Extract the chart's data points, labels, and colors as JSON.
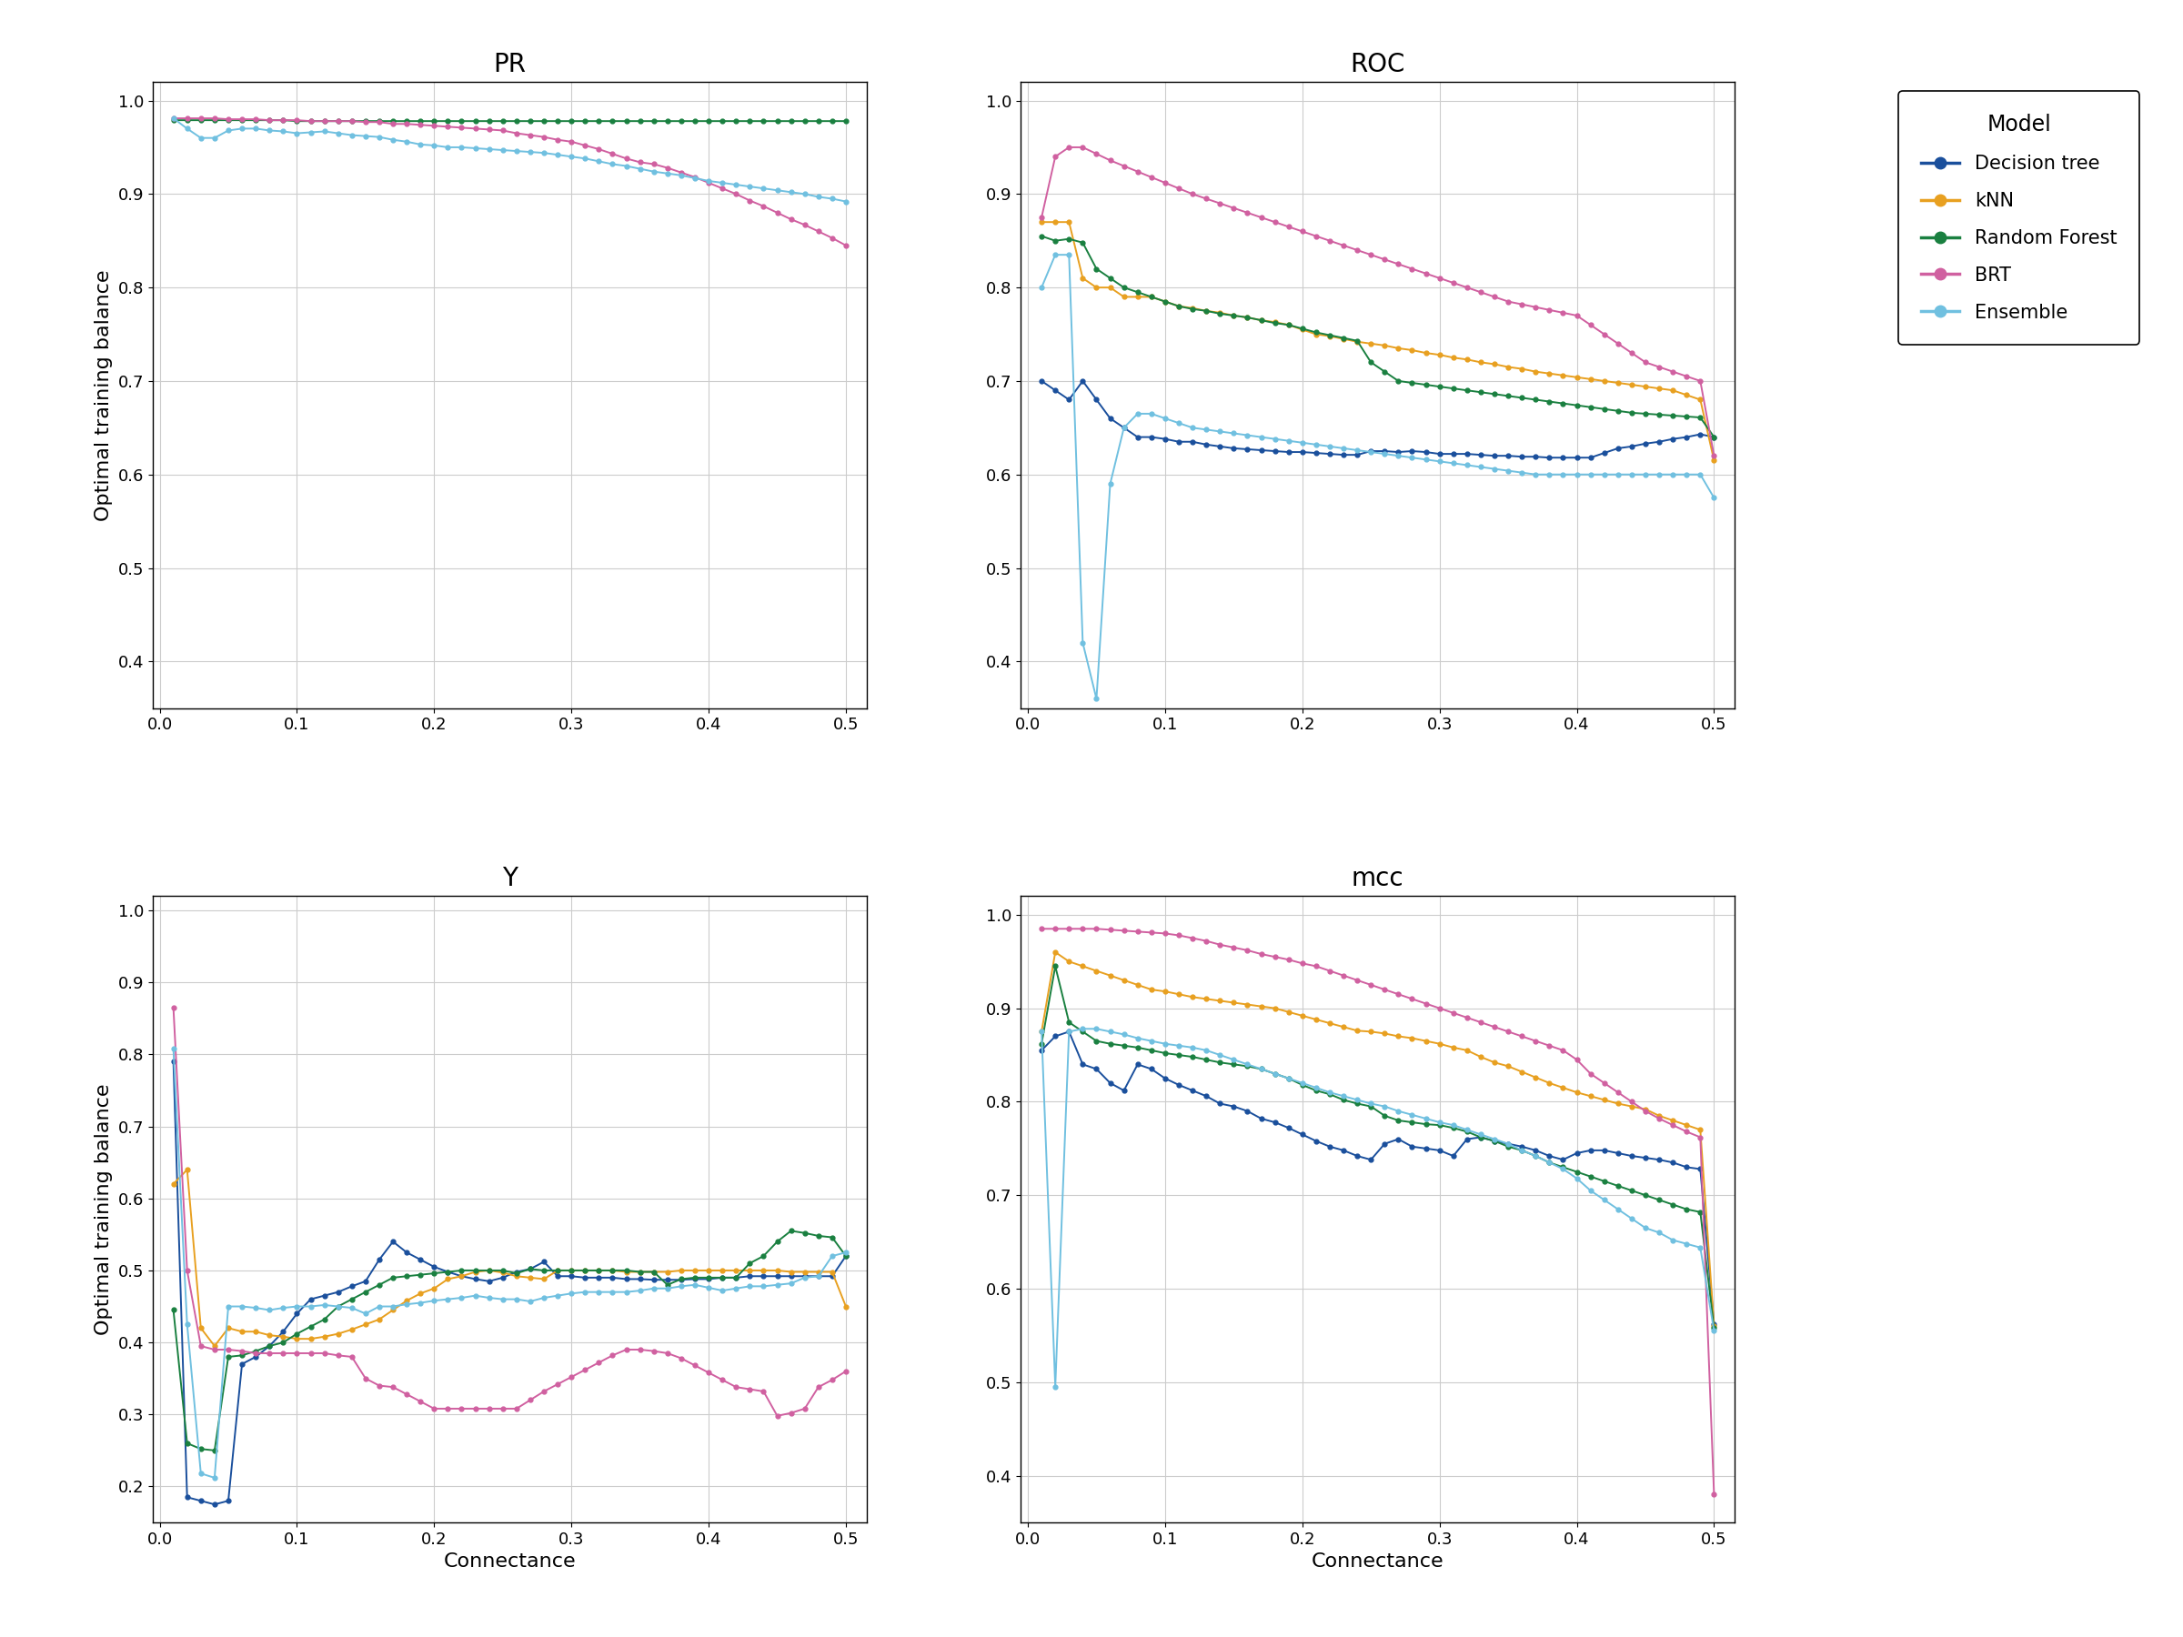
{
  "models": [
    "Decision tree",
    "kNN",
    "Random Forest",
    "BRT",
    "Ensemble"
  ],
  "colors": {
    "Decision tree": "#1a4f9c",
    "kNN": "#e8a020",
    "Random Forest": "#1a8040",
    "BRT": "#d060a0",
    "Ensemble": "#70c0e0"
  },
  "connectance": [
    0.01,
    0.02,
    0.03,
    0.04,
    0.05,
    0.06,
    0.07,
    0.08,
    0.09,
    0.1,
    0.11,
    0.12,
    0.13,
    0.14,
    0.15,
    0.16,
    0.17,
    0.18,
    0.19,
    0.2,
    0.21,
    0.22,
    0.23,
    0.24,
    0.25,
    0.26,
    0.27,
    0.28,
    0.29,
    0.3,
    0.31,
    0.32,
    0.33,
    0.34,
    0.35,
    0.36,
    0.37,
    0.38,
    0.39,
    0.4,
    0.41,
    0.42,
    0.43,
    0.44,
    0.45,
    0.46,
    0.47,
    0.48,
    0.49,
    0.5
  ],
  "PR": {
    "Decision tree": [
      null,
      null,
      null,
      null,
      null,
      null,
      null,
      null,
      null,
      null,
      null,
      null,
      null,
      null,
      null,
      null,
      null,
      null,
      null,
      null,
      null,
      null,
      null,
      null,
      null,
      null,
      null,
      null,
      null,
      null,
      null,
      null,
      null,
      null,
      null,
      null,
      null,
      null,
      null,
      null,
      null,
      null,
      null,
      null,
      null,
      null,
      null,
      null,
      null,
      null
    ],
    "kNN": [
      null,
      null,
      null,
      null,
      null,
      null,
      null,
      null,
      null,
      null,
      null,
      null,
      null,
      null,
      null,
      null,
      null,
      null,
      null,
      null,
      null,
      null,
      null,
      null,
      null,
      null,
      null,
      null,
      null,
      null,
      null,
      null,
      null,
      null,
      null,
      null,
      null,
      null,
      null,
      null,
      null,
      null,
      null,
      null,
      null,
      null,
      null,
      null,
      null,
      null
    ],
    "Random Forest": [
      0.979,
      0.979,
      0.979,
      0.979,
      0.979,
      0.979,
      0.979,
      0.979,
      0.979,
      0.978,
      0.978,
      0.978,
      0.978,
      0.978,
      0.978,
      0.978,
      0.978,
      0.978,
      0.978,
      0.978,
      0.978,
      0.978,
      0.978,
      0.978,
      0.978,
      0.978,
      0.978,
      0.978,
      0.978,
      0.978,
      0.978,
      0.978,
      0.978,
      0.978,
      0.978,
      0.978,
      0.978,
      0.978,
      0.978,
      0.978,
      0.978,
      0.978,
      0.978,
      0.978,
      0.978,
      0.978,
      0.978,
      0.978,
      0.978,
      0.978
    ],
    "BRT": [
      0.981,
      0.981,
      0.981,
      0.981,
      0.98,
      0.98,
      0.98,
      0.979,
      0.979,
      0.979,
      0.978,
      0.978,
      0.978,
      0.978,
      0.977,
      0.977,
      0.975,
      0.975,
      0.974,
      0.973,
      0.972,
      0.971,
      0.97,
      0.969,
      0.968,
      0.965,
      0.963,
      0.961,
      0.958,
      0.956,
      0.952,
      0.948,
      0.943,
      0.938,
      0.934,
      0.932,
      0.928,
      0.923,
      0.918,
      0.912,
      0.906,
      0.9,
      0.893,
      0.887,
      0.88,
      0.873,
      0.867,
      0.86,
      0.853,
      0.845
    ],
    "Ensemble": [
      0.981,
      0.97,
      0.96,
      0.96,
      0.968,
      0.97,
      0.97,
      0.968,
      0.967,
      0.965,
      0.966,
      0.967,
      0.965,
      0.963,
      0.962,
      0.961,
      0.958,
      0.956,
      0.953,
      0.952,
      0.95,
      0.95,
      0.949,
      0.948,
      0.947,
      0.946,
      0.945,
      0.944,
      0.942,
      0.94,
      0.938,
      0.935,
      0.932,
      0.93,
      0.927,
      0.924,
      0.922,
      0.92,
      0.917,
      0.914,
      0.912,
      0.91,
      0.908,
      0.906,
      0.904,
      0.902,
      0.9,
      0.897,
      0.895,
      0.892
    ]
  },
  "ROC": {
    "Decision tree": [
      0.7,
      0.69,
      0.68,
      0.7,
      0.68,
      0.66,
      0.65,
      0.64,
      0.64,
      0.638,
      0.635,
      0.635,
      0.632,
      0.63,
      0.628,
      0.627,
      0.626,
      0.625,
      0.624,
      0.624,
      0.623,
      0.622,
      0.621,
      0.621,
      0.625,
      0.625,
      0.624,
      0.625,
      0.624,
      0.622,
      0.622,
      0.622,
      0.621,
      0.62,
      0.62,
      0.619,
      0.619,
      0.618,
      0.618,
      0.618,
      0.618,
      0.623,
      0.628,
      0.63,
      0.633,
      0.635,
      0.638,
      0.64,
      0.643,
      0.64
    ],
    "kNN": [
      0.87,
      0.87,
      0.87,
      0.81,
      0.8,
      0.8,
      0.79,
      0.79,
      0.79,
      0.785,
      0.78,
      0.778,
      0.775,
      0.773,
      0.77,
      0.768,
      0.765,
      0.763,
      0.76,
      0.755,
      0.75,
      0.748,
      0.745,
      0.742,
      0.74,
      0.738,
      0.735,
      0.733,
      0.73,
      0.728,
      0.725,
      0.723,
      0.72,
      0.718,
      0.715,
      0.713,
      0.71,
      0.708,
      0.706,
      0.704,
      0.702,
      0.7,
      0.698,
      0.696,
      0.694,
      0.692,
      0.69,
      0.685,
      0.68,
      0.615
    ],
    "Random Forest": [
      0.855,
      0.85,
      0.852,
      0.848,
      0.82,
      0.81,
      0.8,
      0.795,
      0.79,
      0.785,
      0.78,
      0.777,
      0.775,
      0.772,
      0.77,
      0.768,
      0.765,
      0.762,
      0.76,
      0.756,
      0.752,
      0.749,
      0.746,
      0.743,
      0.72,
      0.71,
      0.7,
      0.698,
      0.696,
      0.694,
      0.692,
      0.69,
      0.688,
      0.686,
      0.684,
      0.682,
      0.68,
      0.678,
      0.676,
      0.674,
      0.672,
      0.67,
      0.668,
      0.666,
      0.665,
      0.664,
      0.663,
      0.662,
      0.661,
      0.64
    ],
    "BRT": [
      0.875,
      0.94,
      0.95,
      0.95,
      0.943,
      0.936,
      0.93,
      0.924,
      0.918,
      0.912,
      0.906,
      0.9,
      0.895,
      0.89,
      0.885,
      0.88,
      0.875,
      0.87,
      0.865,
      0.86,
      0.855,
      0.85,
      0.845,
      0.84,
      0.835,
      0.83,
      0.825,
      0.82,
      0.815,
      0.81,
      0.805,
      0.8,
      0.795,
      0.79,
      0.785,
      0.782,
      0.779,
      0.776,
      0.773,
      0.77,
      0.76,
      0.75,
      0.74,
      0.73,
      0.72,
      0.715,
      0.71,
      0.705,
      0.7,
      0.62
    ],
    "Ensemble": [
      0.8,
      0.835,
      0.835,
      0.42,
      0.36,
      0.59,
      0.65,
      0.665,
      0.665,
      0.66,
      0.655,
      0.65,
      0.648,
      0.646,
      0.644,
      0.642,
      0.64,
      0.638,
      0.636,
      0.634,
      0.632,
      0.63,
      0.628,
      0.626,
      0.624,
      0.622,
      0.62,
      0.618,
      0.616,
      0.614,
      0.612,
      0.61,
      0.608,
      0.606,
      0.604,
      0.602,
      0.6,
      0.6,
      0.6,
      0.6,
      0.6,
      0.6,
      0.6,
      0.6,
      0.6,
      0.6,
      0.6,
      0.6,
      0.6,
      0.575
    ]
  },
  "Y": {
    "Decision tree": [
      0.79,
      0.185,
      0.18,
      0.175,
      0.18,
      0.37,
      0.38,
      0.395,
      0.415,
      0.44,
      0.46,
      0.465,
      0.47,
      0.478,
      0.485,
      0.515,
      0.54,
      0.525,
      0.515,
      0.505,
      0.498,
      0.492,
      0.488,
      0.485,
      0.49,
      0.498,
      0.502,
      0.512,
      0.492,
      0.492,
      0.49,
      0.49,
      0.49,
      0.488,
      0.488,
      0.487,
      0.487,
      0.487,
      0.488,
      0.488,
      0.49,
      0.49,
      0.492,
      0.492,
      0.492,
      0.492,
      0.492,
      0.492,
      0.492,
      0.52
    ],
    "kNN": [
      0.62,
      0.64,
      0.42,
      0.395,
      0.42,
      0.415,
      0.415,
      0.41,
      0.408,
      0.405,
      0.405,
      0.408,
      0.412,
      0.418,
      0.425,
      0.432,
      0.445,
      0.458,
      0.468,
      0.475,
      0.488,
      0.492,
      0.498,
      0.5,
      0.497,
      0.492,
      0.49,
      0.488,
      0.5,
      0.5,
      0.5,
      0.5,
      0.5,
      0.498,
      0.498,
      0.498,
      0.498,
      0.5,
      0.5,
      0.5,
      0.5,
      0.5,
      0.5,
      0.5,
      0.5,
      0.498,
      0.498,
      0.498,
      0.498,
      0.45
    ],
    "Random Forest": [
      0.445,
      0.26,
      0.252,
      0.25,
      0.38,
      0.382,
      0.388,
      0.395,
      0.4,
      0.412,
      0.422,
      0.432,
      0.45,
      0.46,
      0.47,
      0.48,
      0.49,
      0.492,
      0.494,
      0.496,
      0.498,
      0.5,
      0.5,
      0.5,
      0.5,
      0.496,
      0.502,
      0.5,
      0.5,
      0.5,
      0.5,
      0.5,
      0.5,
      0.5,
      0.498,
      0.498,
      0.48,
      0.488,
      0.49,
      0.49,
      0.49,
      0.49,
      0.51,
      0.52,
      0.54,
      0.555,
      0.552,
      0.548,
      0.546,
      0.52
    ],
    "BRT": [
      0.865,
      0.5,
      0.395,
      0.39,
      0.39,
      0.388,
      0.385,
      0.385,
      0.385,
      0.385,
      0.385,
      0.385,
      0.382,
      0.38,
      0.35,
      0.34,
      0.338,
      0.328,
      0.318,
      0.308,
      0.308,
      0.308,
      0.308,
      0.308,
      0.308,
      0.308,
      0.32,
      0.332,
      0.342,
      0.352,
      0.362,
      0.372,
      0.382,
      0.39,
      0.39,
      0.388,
      0.385,
      0.378,
      0.368,
      0.358,
      0.348,
      0.338,
      0.335,
      0.332,
      0.298,
      0.302,
      0.308,
      0.338,
      0.348,
      0.36
    ],
    "Ensemble": [
      0.808,
      0.425,
      0.218,
      0.212,
      0.45,
      0.45,
      0.448,
      0.445,
      0.448,
      0.45,
      0.45,
      0.452,
      0.45,
      0.448,
      0.44,
      0.45,
      0.45,
      0.453,
      0.455,
      0.458,
      0.46,
      0.462,
      0.465,
      0.462,
      0.46,
      0.46,
      0.457,
      0.462,
      0.465,
      0.468,
      0.47,
      0.47,
      0.47,
      0.47,
      0.472,
      0.475,
      0.475,
      0.478,
      0.48,
      0.476,
      0.472,
      0.475,
      0.478,
      0.478,
      0.48,
      0.482,
      0.49,
      0.492,
      0.52,
      0.525
    ]
  },
  "mcc": {
    "Decision tree": [
      0.855,
      0.87,
      0.875,
      0.84,
      0.835,
      0.82,
      0.812,
      0.84,
      0.835,
      0.825,
      0.818,
      0.812,
      0.806,
      0.798,
      0.795,
      0.79,
      0.782,
      0.778,
      0.772,
      0.765,
      0.758,
      0.752,
      0.748,
      0.742,
      0.738,
      0.755,
      0.76,
      0.752,
      0.75,
      0.748,
      0.742,
      0.76,
      0.762,
      0.758,
      0.755,
      0.752,
      0.748,
      0.742,
      0.738,
      0.745,
      0.748,
      0.748,
      0.745,
      0.742,
      0.74,
      0.738,
      0.735,
      0.73,
      0.728,
      0.562
    ],
    "kNN": [
      0.875,
      0.96,
      0.95,
      0.945,
      0.94,
      0.935,
      0.93,
      0.925,
      0.92,
      0.918,
      0.915,
      0.912,
      0.91,
      0.908,
      0.906,
      0.904,
      0.902,
      0.9,
      0.896,
      0.892,
      0.888,
      0.884,
      0.88,
      0.876,
      0.875,
      0.873,
      0.87,
      0.868,
      0.865,
      0.862,
      0.858,
      0.855,
      0.848,
      0.842,
      0.838,
      0.832,
      0.826,
      0.82,
      0.815,
      0.81,
      0.806,
      0.802,
      0.798,
      0.795,
      0.792,
      0.785,
      0.78,
      0.775,
      0.77,
      0.56
    ],
    "Random Forest": [
      0.862,
      0.945,
      0.885,
      0.875,
      0.865,
      0.862,
      0.86,
      0.858,
      0.855,
      0.852,
      0.85,
      0.848,
      0.845,
      0.842,
      0.84,
      0.838,
      0.835,
      0.83,
      0.825,
      0.818,
      0.812,
      0.808,
      0.802,
      0.798,
      0.795,
      0.785,
      0.78,
      0.778,
      0.776,
      0.775,
      0.772,
      0.768,
      0.762,
      0.758,
      0.752,
      0.748,
      0.742,
      0.735,
      0.73,
      0.725,
      0.72,
      0.715,
      0.71,
      0.705,
      0.7,
      0.695,
      0.69,
      0.685,
      0.682,
      0.558
    ],
    "BRT": [
      0.985,
      0.985,
      0.985,
      0.985,
      0.985,
      0.984,
      0.983,
      0.982,
      0.981,
      0.98,
      0.978,
      0.975,
      0.972,
      0.968,
      0.965,
      0.962,
      0.958,
      0.955,
      0.952,
      0.948,
      0.945,
      0.94,
      0.935,
      0.93,
      0.925,
      0.92,
      0.915,
      0.91,
      0.905,
      0.9,
      0.895,
      0.89,
      0.885,
      0.88,
      0.875,
      0.87,
      0.865,
      0.86,
      0.855,
      0.845,
      0.83,
      0.82,
      0.81,
      0.8,
      0.79,
      0.782,
      0.775,
      0.768,
      0.762,
      0.38
    ],
    "Ensemble": [
      0.875,
      0.495,
      0.875,
      0.878,
      0.878,
      0.875,
      0.872,
      0.868,
      0.865,
      0.862,
      0.86,
      0.858,
      0.855,
      0.85,
      0.845,
      0.84,
      0.835,
      0.83,
      0.825,
      0.82,
      0.815,
      0.81,
      0.806,
      0.802,
      0.798,
      0.795,
      0.79,
      0.786,
      0.782,
      0.778,
      0.775,
      0.77,
      0.765,
      0.76,
      0.755,
      0.748,
      0.742,
      0.735,
      0.728,
      0.718,
      0.705,
      0.695,
      0.685,
      0.675,
      0.665,
      0.66,
      0.652,
      0.648,
      0.644,
      0.555
    ]
  },
  "ylabel": "Optimal training balance",
  "xlabel": "Connectance",
  "subplot_titles": [
    "PR",
    "ROC",
    "Y",
    "mcc"
  ],
  "legend_title": "Model",
  "ylims": {
    "PR": [
      0.35,
      1.02
    ],
    "ROC": [
      0.35,
      1.02
    ],
    "Y": [
      0.15,
      1.02
    ],
    "mcc": [
      0.35,
      1.02
    ]
  },
  "figsize": [
    24.0,
    18.0
  ]
}
